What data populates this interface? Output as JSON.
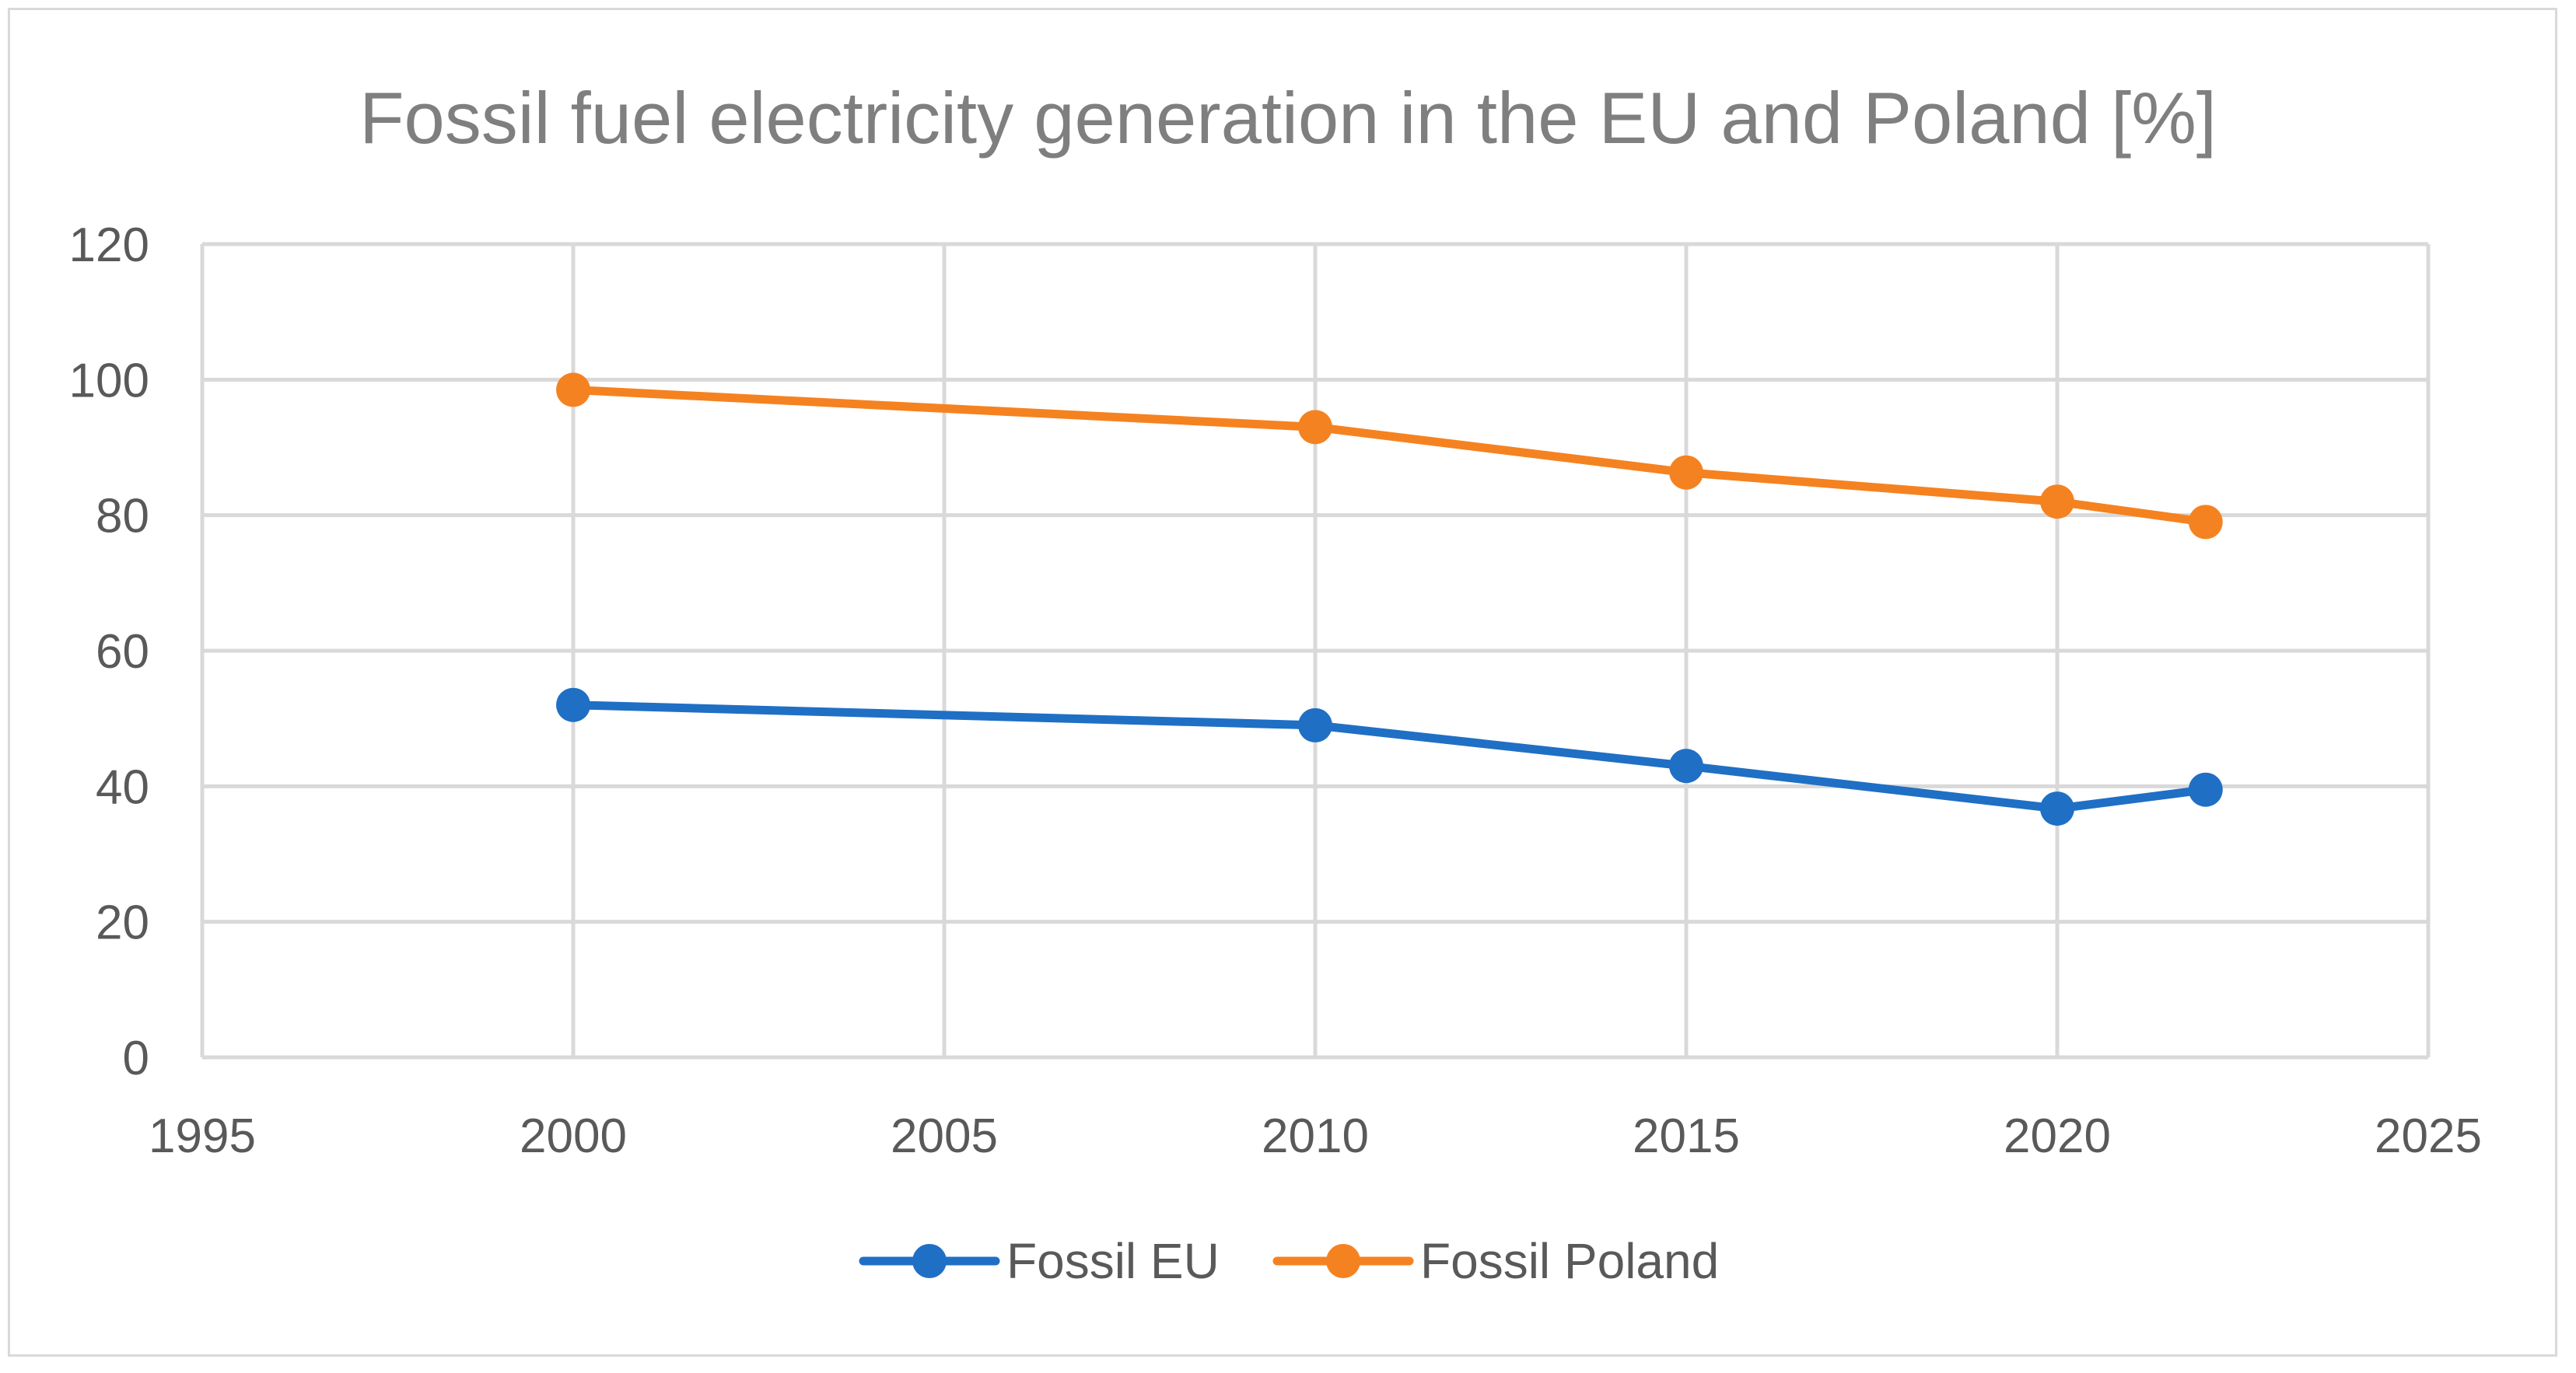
{
  "chart_data": {
    "type": "line",
    "title": "Fossil fuel electricity generation in the EU and Poland [%]",
    "xlabel": "",
    "ylabel": "",
    "xlim": [
      1995,
      2025
    ],
    "ylim": [
      0,
      120
    ],
    "x_ticks": [
      1995,
      2000,
      2005,
      2010,
      2015,
      2020,
      2025
    ],
    "y_ticks": [
      0,
      20,
      40,
      60,
      80,
      100,
      120
    ],
    "grid": true,
    "legend_position": "bottom",
    "series": [
      {
        "name": "Fossil EU",
        "color": "#1f6fc5",
        "x": [
          2000,
          2010,
          2015,
          2020,
          2022
        ],
        "values": [
          52,
          49,
          43,
          36.7,
          39.5
        ]
      },
      {
        "name": "Fossil Poland",
        "color": "#f58220",
        "x": [
          2000,
          2010,
          2015,
          2020,
          2022
        ],
        "values": [
          98.5,
          93,
          86.3,
          82,
          79
        ]
      }
    ]
  }
}
